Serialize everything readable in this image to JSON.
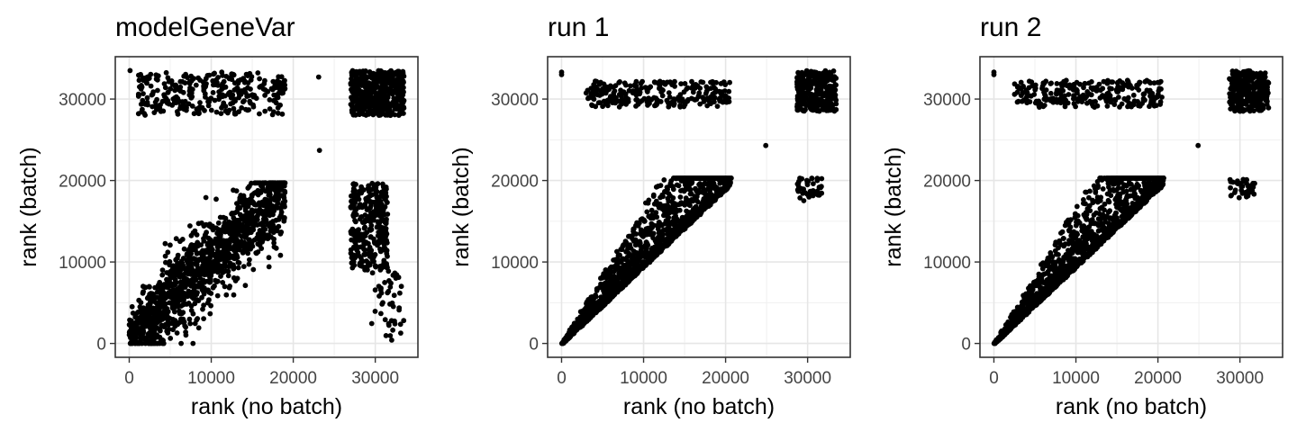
{
  "chart_data": [
    {
      "type": "scatter",
      "title": "modelGeneVar",
      "xlabel": "rank (no batch)",
      "ylabel": "rank (batch)",
      "xlim": [
        -1700,
        35200
      ],
      "ylim": [
        -1700,
        35200
      ],
      "xticks": [
        0,
        10000,
        20000,
        30000
      ],
      "yticks": [
        0,
        10000,
        20000,
        30000
      ],
      "xtick_labels": [
        "0",
        "10000",
        "20000",
        "30000"
      ],
      "ytick_labels": [
        "0",
        "10000",
        "20000",
        "30000"
      ],
      "grid": true,
      "point_color": "#000000",
      "clusters": [
        {
          "shape": "band",
          "x_range": [
            0,
            19000
          ],
          "center_slope": 0.95,
          "center_intercept": 800,
          "spread": 2700,
          "y_min": 0,
          "y_max": 19700,
          "n": 1300
        },
        {
          "shape": "box",
          "x_range": [
            1000,
            19000
          ],
          "y_range": [
            28000,
            33300
          ],
          "n": 320
        },
        {
          "shape": "box",
          "x_range": [
            27000,
            33500
          ],
          "y_range": [
            28000,
            33500
          ],
          "n": 500
        },
        {
          "shape": "box",
          "x_range": [
            27000,
            31500
          ],
          "y_range": [
            9000,
            19700
          ],
          "n": 320
        },
        {
          "shape": "box",
          "x_range": [
            29500,
            33500
          ],
          "y_range": [
            300,
            9000
          ],
          "n": 45
        }
      ],
      "points": [
        {
          "x": 23100,
          "y": 32700
        },
        {
          "x": 23200,
          "y": 23700
        },
        {
          "x": 100,
          "y": 33500
        }
      ]
    },
    {
      "type": "scatter",
      "title": "run 1",
      "xlabel": "rank (no batch)",
      "ylabel": "rank (batch)",
      "xlim": [
        -1700,
        35200
      ],
      "ylim": [
        -1700,
        35200
      ],
      "xticks": [
        0,
        10000,
        20000,
        30000
      ],
      "yticks": [
        0,
        10000,
        20000,
        30000
      ],
      "xtick_labels": [
        "0",
        "10000",
        "20000",
        "30000"
      ],
      "ytick_labels": [
        "0",
        "10000",
        "20000",
        "30000"
      ],
      "grid": true,
      "point_color": "#000000",
      "clusters": [
        {
          "shape": "wedge",
          "x_range": [
            0,
            20700
          ],
          "n": 1500
        },
        {
          "shape": "box",
          "x_range": [
            3000,
            20500
          ],
          "y_range": [
            29000,
            32200
          ],
          "n": 260
        },
        {
          "shape": "box",
          "x_range": [
            28700,
            33500
          ],
          "y_range": [
            28500,
            33500
          ],
          "n": 320
        },
        {
          "shape": "box",
          "x_range": [
            28700,
            31800
          ],
          "y_range": [
            17500,
            20300
          ],
          "n": 40
        }
      ],
      "points": [
        {
          "x": 0,
          "y": 33300
        },
        {
          "x": 0,
          "y": 33000
        },
        {
          "x": 24900,
          "y": 24300
        }
      ]
    },
    {
      "type": "scatter",
      "title": "run 2",
      "xlabel": "rank (no batch)",
      "ylabel": "rank (batch)",
      "xlim": [
        -1700,
        35200
      ],
      "ylim": [
        -1700,
        35200
      ],
      "xticks": [
        0,
        10000,
        20000,
        30000
      ],
      "yticks": [
        0,
        10000,
        20000,
        30000
      ],
      "xtick_labels": [
        "0",
        "10000",
        "20000",
        "30000"
      ],
      "ytick_labels": [
        "0",
        "10000",
        "20000",
        "30000"
      ],
      "grid": true,
      "point_color": "#000000",
      "clusters": [
        {
          "shape": "wedge",
          "x_range": [
            0,
            20700
          ],
          "n": 1500
        },
        {
          "shape": "box",
          "x_range": [
            2500,
            20500
          ],
          "y_range": [
            29000,
            32300
          ],
          "n": 260
        },
        {
          "shape": "box",
          "x_range": [
            28700,
            33500
          ],
          "y_range": [
            28500,
            33500
          ],
          "n": 320
        },
        {
          "shape": "box",
          "x_range": [
            28700,
            31800
          ],
          "y_range": [
            17800,
            20300
          ],
          "n": 40
        }
      ],
      "points": [
        {
          "x": 0,
          "y": 33300
        },
        {
          "x": 0,
          "y": 33000
        },
        {
          "x": 24900,
          "y": 24300
        }
      ]
    }
  ]
}
